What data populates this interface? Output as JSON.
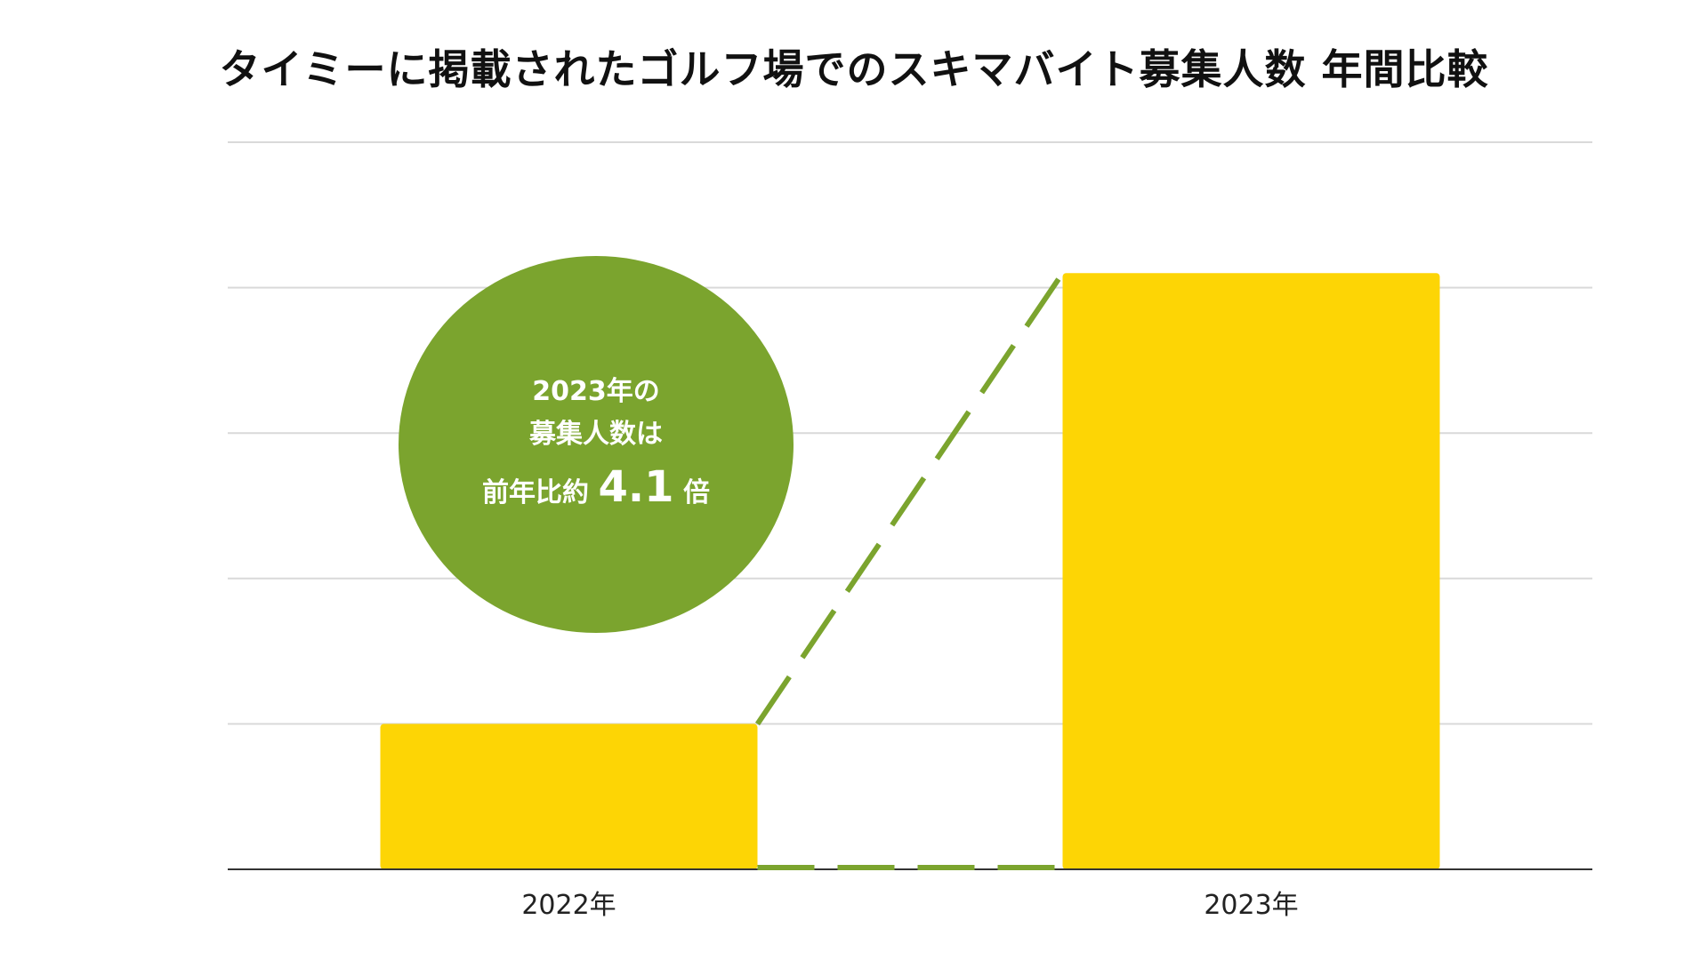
{
  "chart_data": {
    "type": "bar",
    "title": "タイミーに掲載されたゴルフ場でのスキマバイト募集人数 年間比較",
    "xlabel": "",
    "ylabel": "",
    "categories": [
      "2022年",
      "2023年"
    ],
    "values": [
      1,
      4.1
    ],
    "ylim": [
      0,
      5
    ],
    "grid": true,
    "bar_color": "#FDD505",
    "gridline_color": "#D9D9D9",
    "axis_color": "#333333",
    "callout": {
      "line1": "2023年の",
      "line2": "募集人数は",
      "line3_prefix": "前年比約",
      "line3_value": "4.1",
      "line3_suffix": "倍",
      "color": "#7BA42E"
    },
    "growth_line_color": "#7BA42E"
  }
}
